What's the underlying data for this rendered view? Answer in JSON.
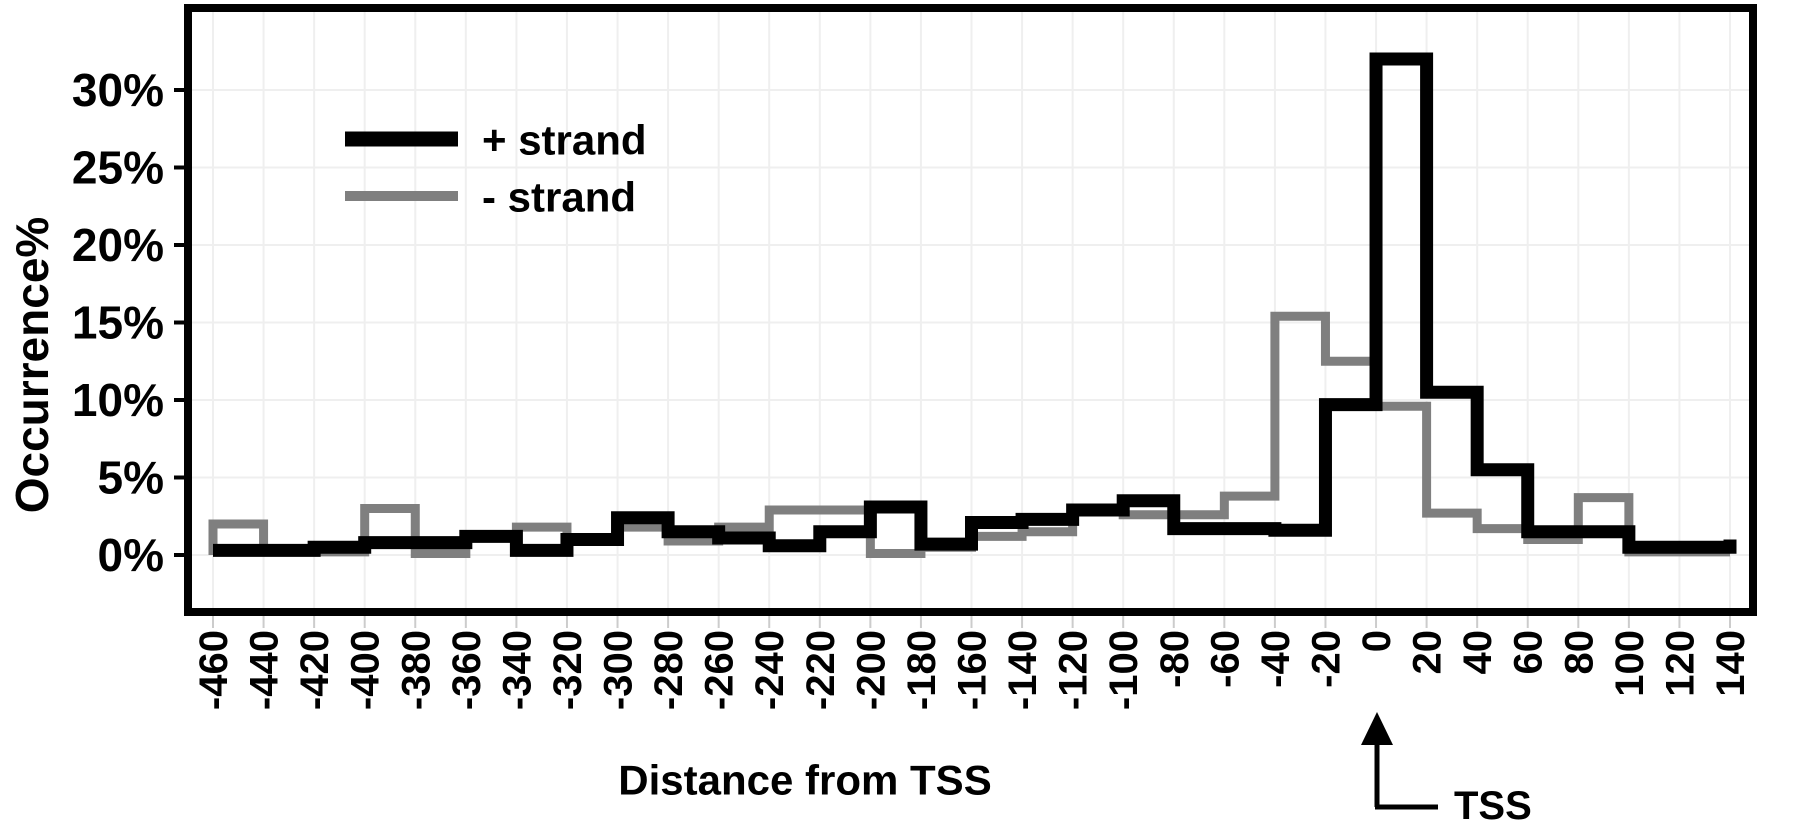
{
  "figure": {
    "background": "#ffffff",
    "plot_border_color": "#000000",
    "grid_color": "#efefef",
    "tick_stub_color": "#cccccc"
  },
  "chart_data": {
    "type": "step-histogram-line",
    "title": "",
    "xlabel": "Distance from TSS",
    "ylabel": "Occurrence%",
    "grid": true,
    "legend_position": "upper-left-inside",
    "ylim": [
      0,
      35
    ],
    "xlim": [
      -480,
      160
    ],
    "bin_edges": [
      -460,
      -440,
      -420,
      -400,
      -380,
      -360,
      -340,
      -320,
      -300,
      -280,
      -260,
      -240,
      -220,
      -200,
      -180,
      -160,
      -140,
      -120,
      -100,
      -80,
      -60,
      -40,
      -20,
      0,
      20,
      40,
      60,
      80,
      100,
      120,
      140
    ],
    "x_tick_labels": [
      "-460",
      "-440",
      "-420",
      "-400",
      "-380",
      "-360",
      "-340",
      "-320",
      "-300",
      "-280",
      "-260",
      "-240",
      "-220",
      "-200",
      "-180",
      "-160",
      "-140",
      "-120",
      "-100",
      "-80",
      "-60",
      "-40",
      "-20",
      "0",
      "20",
      "40",
      "60",
      "80",
      "100",
      "120",
      "140"
    ],
    "y_ticks": [
      0,
      5,
      10,
      15,
      20,
      25,
      30
    ],
    "y_tick_labels": [
      "0%",
      "5%",
      "10%",
      "15%",
      "20%",
      "25%",
      "30%"
    ],
    "series": [
      {
        "name": "+ strand",
        "color": "#000000",
        "starts_at_zero": false,
        "end_cap_value": 1.0,
        "values": [
          0.3,
          0.3,
          0.5,
          0.8,
          0.8,
          1.2,
          0.3,
          1.0,
          2.4,
          1.5,
          1.1,
          0.6,
          1.5,
          3.1,
          0.7,
          2.1,
          2.3,
          2.9,
          3.5,
          1.7,
          1.7,
          1.6,
          9.7,
          32.0,
          10.5,
          5.5,
          1.5,
          1.5,
          0.5,
          0.5
        ]
      },
      {
        "name": "- strand",
        "color": "#7f7f7f",
        "starts_at_zero": true,
        "end_cap_value": null,
        "values": [
          2.0,
          0.2,
          0.2,
          3.0,
          0.1,
          1.2,
          1.8,
          1.0,
          1.8,
          0.9,
          1.8,
          2.9,
          2.9,
          0.1,
          0.5,
          1.2,
          1.5,
          2.8,
          2.6,
          2.6,
          3.8,
          15.4,
          12.5,
          9.6,
          2.7,
          1.7,
          1.0,
          3.7,
          0.2,
          0.2
        ]
      }
    ],
    "annotation": {
      "label": "TSS",
      "x": 0
    }
  }
}
